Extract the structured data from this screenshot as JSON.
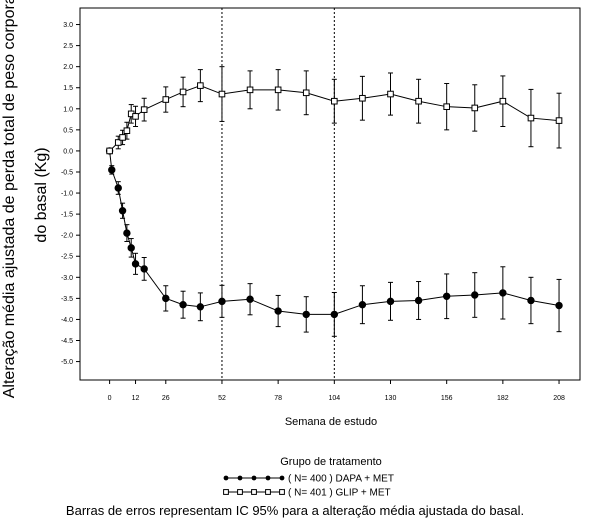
{
  "chart_data": {
    "type": "line",
    "title": "",
    "xlabel": "Semana de estudo",
    "ylabel_lines": [
      "Alteração média ajustada de perda total de peso corporal",
      "do basal (Kg)"
    ],
    "x_ticks": [
      0,
      12,
      26,
      52,
      78,
      104,
      130,
      156,
      182,
      208
    ],
    "y_ticks": [
      3.0,
      2.5,
      2.0,
      1.5,
      1.0,
      0.5,
      0.0,
      -0.5,
      -1.0,
      -1.5,
      -2.0,
      -2.5,
      -3.0,
      -3.5,
      -4.0,
      -4.5,
      -5.0
    ],
    "y_tick_labels": [
      "3.0",
      "2.5",
      "2.0",
      "1.5",
      "1.0",
      "0.5",
      "0.0",
      "-0.5",
      "-1.0",
      "-1.5",
      "-2.0",
      "-2.5",
      "-3.0",
      "-3.5",
      "-4.0",
      "-4.5",
      "-5.0"
    ],
    "xlim": [
      -10,
      214
    ],
    "ylim": [
      -5.2,
      3.25
    ],
    "vlines": [
      52,
      104
    ],
    "legend_title": "Grupo de tratamento",
    "legend_position": "bottom",
    "series": [
      {
        "name": "( N= 400 ) DAPA + MET",
        "marker": "filled-circle",
        "x": [
          0,
          1,
          4,
          6,
          8,
          10,
          12,
          16,
          26,
          34,
          42,
          52,
          65,
          78,
          91,
          104,
          117,
          130,
          143,
          156,
          169,
          182,
          195,
          208
        ],
        "y": [
          0.0,
          -0.45,
          -0.88,
          -1.42,
          -1.95,
          -2.3,
          -2.68,
          -2.8,
          -3.5,
          -3.65,
          -3.7,
          -3.57,
          -3.52,
          -3.8,
          -3.88,
          -3.88,
          -3.65,
          -3.57,
          -3.55,
          -3.45,
          -3.42,
          -3.37,
          -3.55,
          -3.67
        ],
        "err": [
          0.04,
          0.1,
          0.15,
          0.18,
          0.2,
          0.22,
          0.25,
          0.27,
          0.3,
          0.32,
          0.33,
          0.38,
          0.37,
          0.37,
          0.42,
          0.52,
          0.45,
          0.45,
          0.45,
          0.53,
          0.53,
          0.62,
          0.55,
          0.62
        ]
      },
      {
        "name": "( N= 401 ) GLIP + MET",
        "marker": "open-square",
        "x": [
          0,
          4,
          6,
          8,
          10,
          12,
          16,
          26,
          34,
          42,
          52,
          65,
          78,
          91,
          104,
          117,
          130,
          143,
          156,
          169,
          182,
          195,
          208
        ],
        "y": [
          0.0,
          0.2,
          0.32,
          0.48,
          0.88,
          0.82,
          0.98,
          1.22,
          1.4,
          1.55,
          1.35,
          1.45,
          1.45,
          1.38,
          1.18,
          1.25,
          1.35,
          1.18,
          1.05,
          1.02,
          1.18,
          0.78,
          0.72
        ],
        "err": [
          0.04,
          0.15,
          0.17,
          0.2,
          0.22,
          0.24,
          0.27,
          0.3,
          0.35,
          0.38,
          0.65,
          0.45,
          0.48,
          0.52,
          0.52,
          0.52,
          0.5,
          0.52,
          0.55,
          0.55,
          0.6,
          0.68,
          0.65
        ]
      }
    ]
  },
  "footnote": "Barras de erros representam IC 95% para a alteração média ajustada do basal."
}
